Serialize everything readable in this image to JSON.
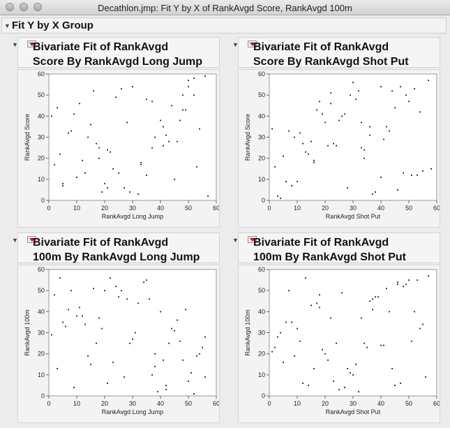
{
  "window": {
    "title": "Decathlon.jmp: Fit Y by X of RankAvgd Score, RankAvgd 100m"
  },
  "group": {
    "label": "Fit Y by X Group"
  },
  "panels": [
    {
      "title_line1": "Bivariate Fit of RankAvgd",
      "title_line2": "Score By RankAvgd Long Jump"
    },
    {
      "title_line1": "Bivariate Fit of RankAvgd",
      "title_line2": "Score By RankAvgd Shot Put"
    },
    {
      "title_line1": "Bivariate Fit of RankAvgd",
      "title_line2": "100m By RankAvgd Long Jump"
    },
    {
      "title_line1": "Bivariate Fit of RankAvgd",
      "title_line2": "100m By RankAvgd Shot Put"
    }
  ],
  "chart_data": [
    {
      "type": "scatter",
      "xlabel": "RankAvgd Long Jump",
      "ylabel": "RankAvgd Score",
      "xlim": [
        0,
        60
      ],
      "ylim": [
        0,
        60
      ],
      "xticks": [
        0,
        10,
        20,
        30,
        40,
        50,
        60
      ],
      "yticks": [
        0,
        10,
        20,
        30,
        40,
        50,
        60
      ],
      "points": [
        [
          1,
          40
        ],
        [
          2,
          17
        ],
        [
          3,
          44
        ],
        [
          4,
          22
        ],
        [
          5,
          8
        ],
        [
          5,
          7
        ],
        [
          7,
          32
        ],
        [
          8,
          33
        ],
        [
          9,
          41
        ],
        [
          10,
          11
        ],
        [
          11,
          46
        ],
        [
          12,
          19
        ],
        [
          13,
          13
        ],
        [
          14,
          30
        ],
        [
          15,
          36
        ],
        [
          16,
          52
        ],
        [
          17,
          27
        ],
        [
          18,
          25
        ],
        [
          18,
          20
        ],
        [
          19,
          4
        ],
        [
          20,
          8
        ],
        [
          21,
          6
        ],
        [
          21,
          24
        ],
        [
          22,
          23
        ],
        [
          23,
          15
        ],
        [
          24,
          49
        ],
        [
          25,
          13
        ],
        [
          26,
          53
        ],
        [
          27,
          6
        ],
        [
          28,
          37
        ],
        [
          29,
          4
        ],
        [
          30,
          54
        ],
        [
          32,
          3
        ],
        [
          33,
          18
        ],
        [
          33,
          17
        ],
        [
          35,
          12
        ],
        [
          35,
          48
        ],
        [
          37,
          47
        ],
        [
          37,
          25
        ],
        [
          38,
          30
        ],
        [
          40,
          38
        ],
        [
          41,
          35
        ],
        [
          41,
          26
        ],
        [
          42,
          31
        ],
        [
          43,
          28
        ],
        [
          44,
          45
        ],
        [
          45,
          10
        ],
        [
          46,
          28
        ],
        [
          47,
          38
        ],
        [
          48,
          43
        ],
        [
          48,
          50
        ],
        [
          49,
          43
        ],
        [
          50,
          54
        ],
        [
          50,
          57
        ],
        [
          52,
          58
        ],
        [
          52,
          50
        ],
        [
          53,
          16
        ],
        [
          54,
          34
        ],
        [
          56,
          59
        ],
        [
          57,
          2
        ]
      ]
    },
    {
      "type": "scatter",
      "xlabel": "RankAvgd Shot Put",
      "ylabel": "RankAvgd Score",
      "xlim": [
        0,
        60
      ],
      "ylim": [
        0,
        60
      ],
      "xticks": [
        0,
        10,
        20,
        30,
        40,
        50,
        60
      ],
      "yticks": [
        0,
        10,
        20,
        30,
        40,
        50,
        60
      ],
      "points": [
        [
          1,
          34
        ],
        [
          2,
          16
        ],
        [
          3,
          2
        ],
        [
          4,
          1
        ],
        [
          5,
          21
        ],
        [
          6,
          9
        ],
        [
          7,
          33
        ],
        [
          8,
          7
        ],
        [
          9,
          30
        ],
        [
          10,
          9
        ],
        [
          11,
          32
        ],
        [
          12,
          27
        ],
        [
          13,
          23
        ],
        [
          14,
          22
        ],
        [
          15,
          28
        ],
        [
          16,
          19
        ],
        [
          16,
          18
        ],
        [
          17,
          43
        ],
        [
          18,
          47
        ],
        [
          19,
          41
        ],
        [
          20,
          37
        ],
        [
          21,
          26
        ],
        [
          22,
          51
        ],
        [
          22,
          46
        ],
        [
          23,
          27
        ],
        [
          24,
          26
        ],
        [
          25,
          38
        ],
        [
          26,
          40
        ],
        [
          27,
          41
        ],
        [
          28,
          6
        ],
        [
          29,
          50
        ],
        [
          30,
          56
        ],
        [
          31,
          48
        ],
        [
          32,
          52
        ],
        [
          33,
          37
        ],
        [
          33,
          25
        ],
        [
          34,
          20
        ],
        [
          34,
          24
        ],
        [
          36,
          31
        ],
        [
          36,
          35
        ],
        [
          37,
          3
        ],
        [
          38,
          4
        ],
        [
          40,
          54
        ],
        [
          40,
          11
        ],
        [
          41,
          29
        ],
        [
          42,
          35
        ],
        [
          43,
          33
        ],
        [
          44,
          52
        ],
        [
          45,
          44
        ],
        [
          46,
          5
        ],
        [
          47,
          54
        ],
        [
          48,
          13
        ],
        [
          49,
          50
        ],
        [
          50,
          47
        ],
        [
          51,
          12
        ],
        [
          52,
          53
        ],
        [
          53,
          12
        ],
        [
          54,
          42
        ],
        [
          55,
          14
        ],
        [
          57,
          57
        ],
        [
          58,
          15
        ]
      ]
    },
    {
      "type": "scatter",
      "xlabel": "RankAvgd Long Jump",
      "ylabel": "RankAvgd 100m",
      "xlim": [
        0,
        60
      ],
      "ylim": [
        0,
        60
      ],
      "xticks": [
        0,
        10,
        20,
        30,
        40,
        50,
        60
      ],
      "yticks": [
        0,
        10,
        20,
        30,
        40,
        50,
        60
      ],
      "points": [
        [
          1,
          29
        ],
        [
          2,
          48
        ],
        [
          3,
          13
        ],
        [
          4,
          56
        ],
        [
          5,
          35
        ],
        [
          6,
          33
        ],
        [
          7,
          41
        ],
        [
          8,
          50
        ],
        [
          9,
          4
        ],
        [
          10,
          38
        ],
        [
          11,
          42
        ],
        [
          12,
          38
        ],
        [
          13,
          34
        ],
        [
          14,
          19
        ],
        [
          15,
          15
        ],
        [
          16,
          51
        ],
        [
          17,
          25
        ],
        [
          18,
          37
        ],
        [
          19,
          32
        ],
        [
          20,
          50
        ],
        [
          21,
          6
        ],
        [
          22,
          56
        ],
        [
          23,
          16
        ],
        [
          24,
          52
        ],
        [
          25,
          47
        ],
        [
          26,
          50
        ],
        [
          27,
          9
        ],
        [
          28,
          46
        ],
        [
          29,
          25
        ],
        [
          30,
          27
        ],
        [
          31,
          30
        ],
        [
          32,
          44
        ],
        [
          34,
          54
        ],
        [
          35,
          55
        ],
        [
          36,
          46
        ],
        [
          37,
          10
        ],
        [
          38,
          20
        ],
        [
          38,
          14
        ],
        [
          39,
          2
        ],
        [
          40,
          40
        ],
        [
          41,
          17
        ],
        [
          42,
          3
        ],
        [
          42,
          5
        ],
        [
          43,
          25
        ],
        [
          44,
          32
        ],
        [
          45,
          31
        ],
        [
          46,
          36
        ],
        [
          47,
          26
        ],
        [
          48,
          17
        ],
        [
          49,
          41
        ],
        [
          50,
          7
        ],
        [
          51,
          11
        ],
        [
          52,
          1
        ],
        [
          53,
          19
        ],
        [
          54,
          20
        ],
        [
          55,
          23
        ],
        [
          56,
          9
        ],
        [
          56,
          28
        ]
      ]
    },
    {
      "type": "scatter",
      "xlabel": "RankAvgd Shot Put",
      "ylabel": "RankAvgd 100m",
      "xlim": [
        0,
        60
      ],
      "ylim": [
        0,
        60
      ],
      "xticks": [
        0,
        10,
        20,
        30,
        40,
        50,
        60
      ],
      "yticks": [
        0,
        10,
        20,
        30,
        40,
        50,
        60
      ],
      "points": [
        [
          1,
          21
        ],
        [
          2,
          23
        ],
        [
          3,
          28
        ],
        [
          4,
          30
        ],
        [
          5,
          16
        ],
        [
          6,
          35
        ],
        [
          7,
          50
        ],
        [
          8,
          35
        ],
        [
          9,
          19
        ],
        [
          10,
          32
        ],
        [
          11,
          26
        ],
        [
          12,
          6
        ],
        [
          13,
          56
        ],
        [
          14,
          5
        ],
        [
          15,
          43
        ],
        [
          16,
          13
        ],
        [
          17,
          44
        ],
        [
          18,
          48
        ],
        [
          18,
          42
        ],
        [
          19,
          22
        ],
        [
          20,
          20
        ],
        [
          21,
          17
        ],
        [
          22,
          37
        ],
        [
          23,
          7
        ],
        [
          24,
          25
        ],
        [
          25,
          3
        ],
        [
          26,
          49
        ],
        [
          27,
          4
        ],
        [
          28,
          13
        ],
        [
          29,
          11
        ],
        [
          30,
          10
        ],
        [
          31,
          15
        ],
        [
          32,
          2
        ],
        [
          33,
          37
        ],
        [
          34,
          25
        ],
        [
          35,
          23
        ],
        [
          36,
          45
        ],
        [
          37,
          46
        ],
        [
          37,
          41
        ],
        [
          38,
          47
        ],
        [
          39,
          47
        ],
        [
          40,
          24
        ],
        [
          41,
          24
        ],
        [
          42,
          51
        ],
        [
          43,
          40
        ],
        [
          44,
          13
        ],
        [
          45,
          5
        ],
        [
          46,
          54
        ],
        [
          46,
          53
        ],
        [
          47,
          6
        ],
        [
          48,
          52
        ],
        [
          49,
          53
        ],
        [
          50,
          55
        ],
        [
          51,
          26
        ],
        [
          52,
          40
        ],
        [
          53,
          55
        ],
        [
          54,
          32
        ],
        [
          55,
          34
        ],
        [
          56,
          9
        ],
        [
          57,
          57
        ]
      ]
    }
  ]
}
